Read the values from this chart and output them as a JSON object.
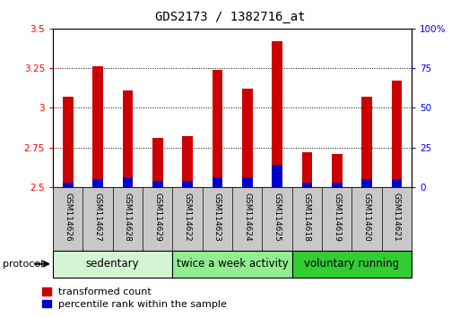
{
  "title": "GDS2173 / 1382716_at",
  "samples": [
    "GSM114626",
    "GSM114627",
    "GSM114628",
    "GSM114629",
    "GSM114622",
    "GSM114623",
    "GSM114624",
    "GSM114625",
    "GSM114618",
    "GSM114619",
    "GSM114620",
    "GSM114621"
  ],
  "transformed_count": [
    3.07,
    3.26,
    3.11,
    2.81,
    2.82,
    3.24,
    3.12,
    3.42,
    2.72,
    2.71,
    3.07,
    3.17
  ],
  "percentile_rank": [
    3,
    5,
    6,
    4,
    4,
    6,
    6,
    14,
    3,
    3,
    5,
    5
  ],
  "ylim_left": [
    2.5,
    3.5
  ],
  "ylim_right": [
    0,
    100
  ],
  "yticks_left": [
    2.5,
    2.75,
    3.0,
    3.25,
    3.5
  ],
  "yticks_right": [
    0,
    25,
    50,
    75,
    100
  ],
  "ytick_labels_left": [
    "2.5",
    "2.75",
    "3",
    "3.25",
    "3.5"
  ],
  "ytick_labels_right": [
    "0",
    "25",
    "50",
    "75",
    "100%"
  ],
  "groups": [
    {
      "label": "sedentary",
      "start": 0,
      "end": 4,
      "color": "#d4f5d4"
    },
    {
      "label": "twice a week activity",
      "start": 4,
      "end": 8,
      "color": "#90ee90"
    },
    {
      "label": "voluntary running",
      "start": 8,
      "end": 12,
      "color": "#32cd32"
    }
  ],
  "bar_color_red": "#cc0000",
  "bar_color_blue": "#0000cc",
  "bar_width": 0.35,
  "grid_color": "#000000",
  "background_xlabels": "#c8c8c8",
  "legend_red_label": "transformed count",
  "legend_blue_label": "percentile rank within the sample",
  "protocol_label": "protocol",
  "title_fontsize": 10,
  "tick_fontsize": 7.5,
  "label_fontsize": 6.5,
  "group_label_fontsize": 8.5,
  "legend_fontsize": 8
}
